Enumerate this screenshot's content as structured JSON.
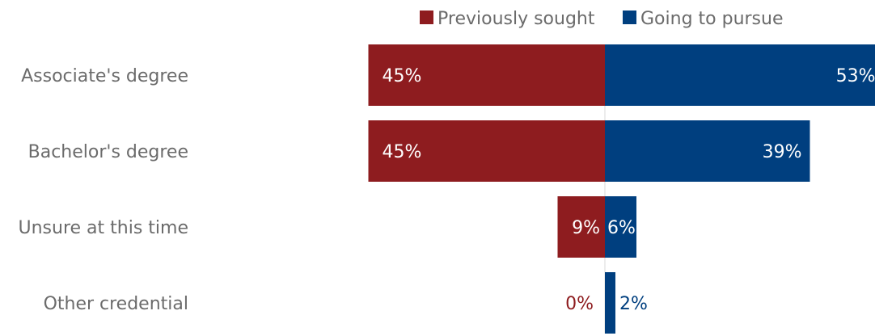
{
  "colors": {
    "previously_sought": "#8e1c1f",
    "going_to_pursue": "#003f7f",
    "text": "#6b6b6b",
    "axis": "#d9d9d9"
  },
  "legend": [
    "Previously sought",
    "Going to pursue"
  ],
  "chart_data": {
    "type": "bar",
    "orientation": "horizontal-diverging",
    "title": "",
    "categories": [
      "Associate's degree",
      "Bachelor's degree",
      "Unsure at this time",
      "Other credential"
    ],
    "series": [
      {
        "name": "Previously sought",
        "values": [
          45,
          45,
          9,
          0
        ],
        "labels": [
          "45%",
          "45%",
          "9%",
          "0%"
        ]
      },
      {
        "name": "Going to pursue",
        "values": [
          53,
          39,
          6,
          2
        ],
        "labels": [
          "53%",
          "39%",
          "6%",
          "2%"
        ]
      }
    ],
    "unit": "%",
    "legend_position": "top-right",
    "grid": false
  }
}
